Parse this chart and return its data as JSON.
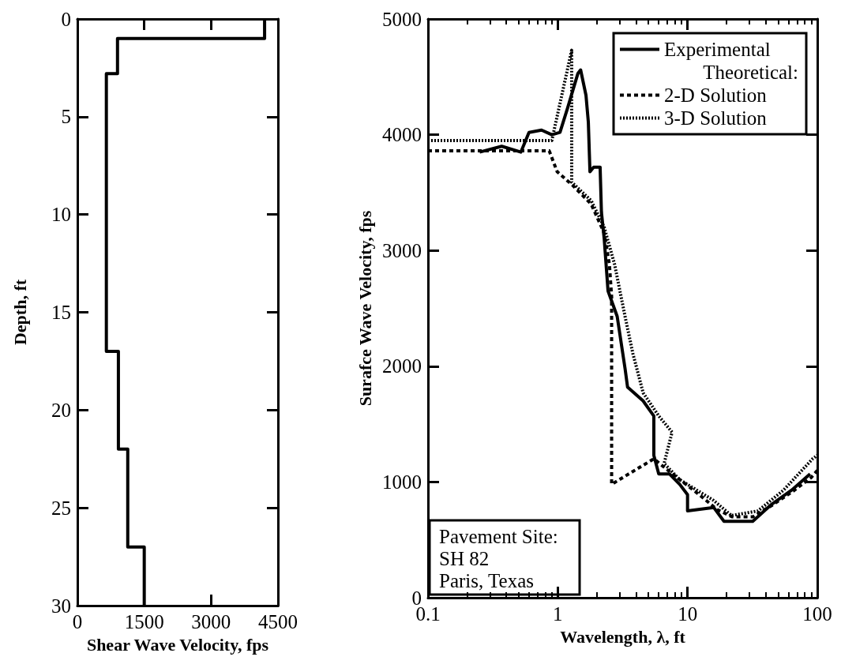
{
  "chart_data": [
    {
      "type": "line",
      "xlabel": "Shear Wave Velocity, fps",
      "ylabel": "Depth, ft",
      "xlim": [
        0,
        4500
      ],
      "xticks": [
        0,
        1500,
        3000,
        4500
      ],
      "ylim": [
        30,
        0
      ],
      "yticks": [
        0,
        5,
        10,
        15,
        20,
        25,
        30
      ],
      "grid": false,
      "legend": false,
      "marker": "none",
      "series": [
        {
          "color": "#000000",
          "line_style": "solid",
          "x": [
            4200,
            4200,
            900,
            900,
            650,
            650,
            920,
            920,
            1130,
            1130,
            1500,
            1500
          ],
          "values": [
            0,
            1,
            1,
            2.8,
            2.8,
            17,
            17,
            22,
            22,
            27,
            27,
            30
          ]
        }
      ]
    },
    {
      "type": "line",
      "xlabel": "Wavelength, λ, ft",
      "ylabel": "Surafce Wave Velocity, fps",
      "log": "x",
      "xlim": [
        0.1,
        100
      ],
      "xticks": [
        0.1,
        1,
        10,
        100
      ],
      "ylim": [
        0,
        5000
      ],
      "yticks": [
        0,
        1000,
        2000,
        3000,
        4000,
        5000
      ],
      "grid": false,
      "legend": "top right",
      "marker": "none",
      "annotations": [
        "Theoretical:",
        "Pavement Site:\nSH 82\nParis, Texas"
      ],
      "series": [
        {
          "name": "Experimental",
          "color": "#000000",
          "line_style": "solid",
          "x": [
            0.25,
            0.37,
            0.52,
            0.6,
            0.75,
            0.9,
            1.04,
            1.19,
            1.43,
            1.5,
            1.65,
            1.72,
            1.77,
            1.89,
            2.12,
            2.17,
            2.28,
            2.44,
            2.87,
            3.3,
            3.45,
            4.55,
            5.5,
            5.5,
            6.0,
            7.25,
            8.7,
            10,
            10,
            15.9,
            19.1,
            31.8,
            43.7,
            63.5,
            88
          ],
          "values": [
            3850,
            3900,
            3850,
            4020,
            4040,
            4000,
            4020,
            4230,
            4530,
            4560,
            4340,
            4110,
            3680,
            3720,
            3720,
            3330,
            3100,
            2650,
            2430,
            1980,
            1820,
            1700,
            1570,
            1230,
            1070,
            1070,
            980,
            890,
            750,
            780,
            660,
            660,
            800,
            930,
            1070
          ]
        },
        {
          "name": "2-D Solution",
          "color": "#000000",
          "line_style": "dashed",
          "x": [
            0.1,
            0.86,
            0.99,
            1.31,
            1.81,
            2.28,
            2.5,
            2.6,
            2.6,
            5.5,
            6.9,
            8.5,
            12,
            17,
            22,
            32,
            45,
            65,
            90,
            100
          ],
          "values": [
            3860,
            3860,
            3680,
            3560,
            3400,
            3150,
            2880,
            2600,
            980,
            1200,
            1110,
            1030,
            900,
            760,
            700,
            700,
            800,
            920,
            1040,
            1100
          ]
        },
        {
          "name": "3-D Solution",
          "color": "#000000",
          "line_style": "dotted",
          "x": [
            0.1,
            0.9,
            1.28,
            1.28,
            1.81,
            2.28,
            2.74,
            3.3,
            3.79,
            4.55,
            6.0,
            7.6,
            6.6,
            8.7,
            15.9,
            21.8,
            34.9,
            55,
            92,
            100
          ],
          "values": [
            3950,
            3950,
            4730,
            3590,
            3430,
            3200,
            2880,
            2430,
            2110,
            1770,
            1570,
            1430,
            1160,
            1020,
            840,
            710,
            750,
            930,
            1200,
            1230
          ]
        }
      ]
    }
  ]
}
